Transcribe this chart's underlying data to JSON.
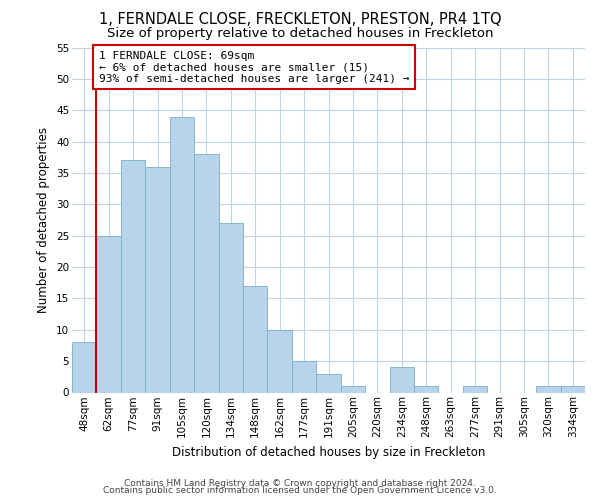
{
  "title": "1, FERNDALE CLOSE, FRECKLETON, PRESTON, PR4 1TQ",
  "subtitle": "Size of property relative to detached houses in Freckleton",
  "xlabel": "Distribution of detached houses by size in Freckleton",
  "ylabel": "Number of detached properties",
  "bar_labels": [
    "48sqm",
    "62sqm",
    "77sqm",
    "91sqm",
    "105sqm",
    "120sqm",
    "134sqm",
    "148sqm",
    "162sqm",
    "177sqm",
    "191sqm",
    "205sqm",
    "220sqm",
    "234sqm",
    "248sqm",
    "263sqm",
    "277sqm",
    "291sqm",
    "305sqm",
    "320sqm",
    "334sqm"
  ],
  "bar_values": [
    8,
    25,
    37,
    36,
    44,
    38,
    27,
    17,
    10,
    5,
    3,
    1,
    0,
    4,
    1,
    0,
    1,
    0,
    0,
    1,
    1
  ],
  "bar_color": "#b8d4ea",
  "bar_edge_color": "#7aafc8",
  "vline_x": 0.5,
  "vline_color": "#cc0000",
  "annotation_text": "1 FERNDALE CLOSE: 69sqm\n← 6% of detached houses are smaller (15)\n93% of semi-detached houses are larger (241) →",
  "annotation_box_color": "#ffffff",
  "annotation_box_edge": "#cc0000",
  "ylim": [
    0,
    55
  ],
  "yticks": [
    0,
    5,
    10,
    15,
    20,
    25,
    30,
    35,
    40,
    45,
    50,
    55
  ],
  "footer1": "Contains HM Land Registry data © Crown copyright and database right 2024.",
  "footer2": "Contains public sector information licensed under the Open Government Licence v3.0.",
  "bg_color": "#ffffff",
  "grid_color": "#c0d4e4",
  "title_fontsize": 10.5,
  "subtitle_fontsize": 9.5,
  "axis_label_fontsize": 8.5,
  "tick_fontsize": 7.5,
  "footer_fontsize": 6.5,
  "ann_fontsize": 8.0
}
